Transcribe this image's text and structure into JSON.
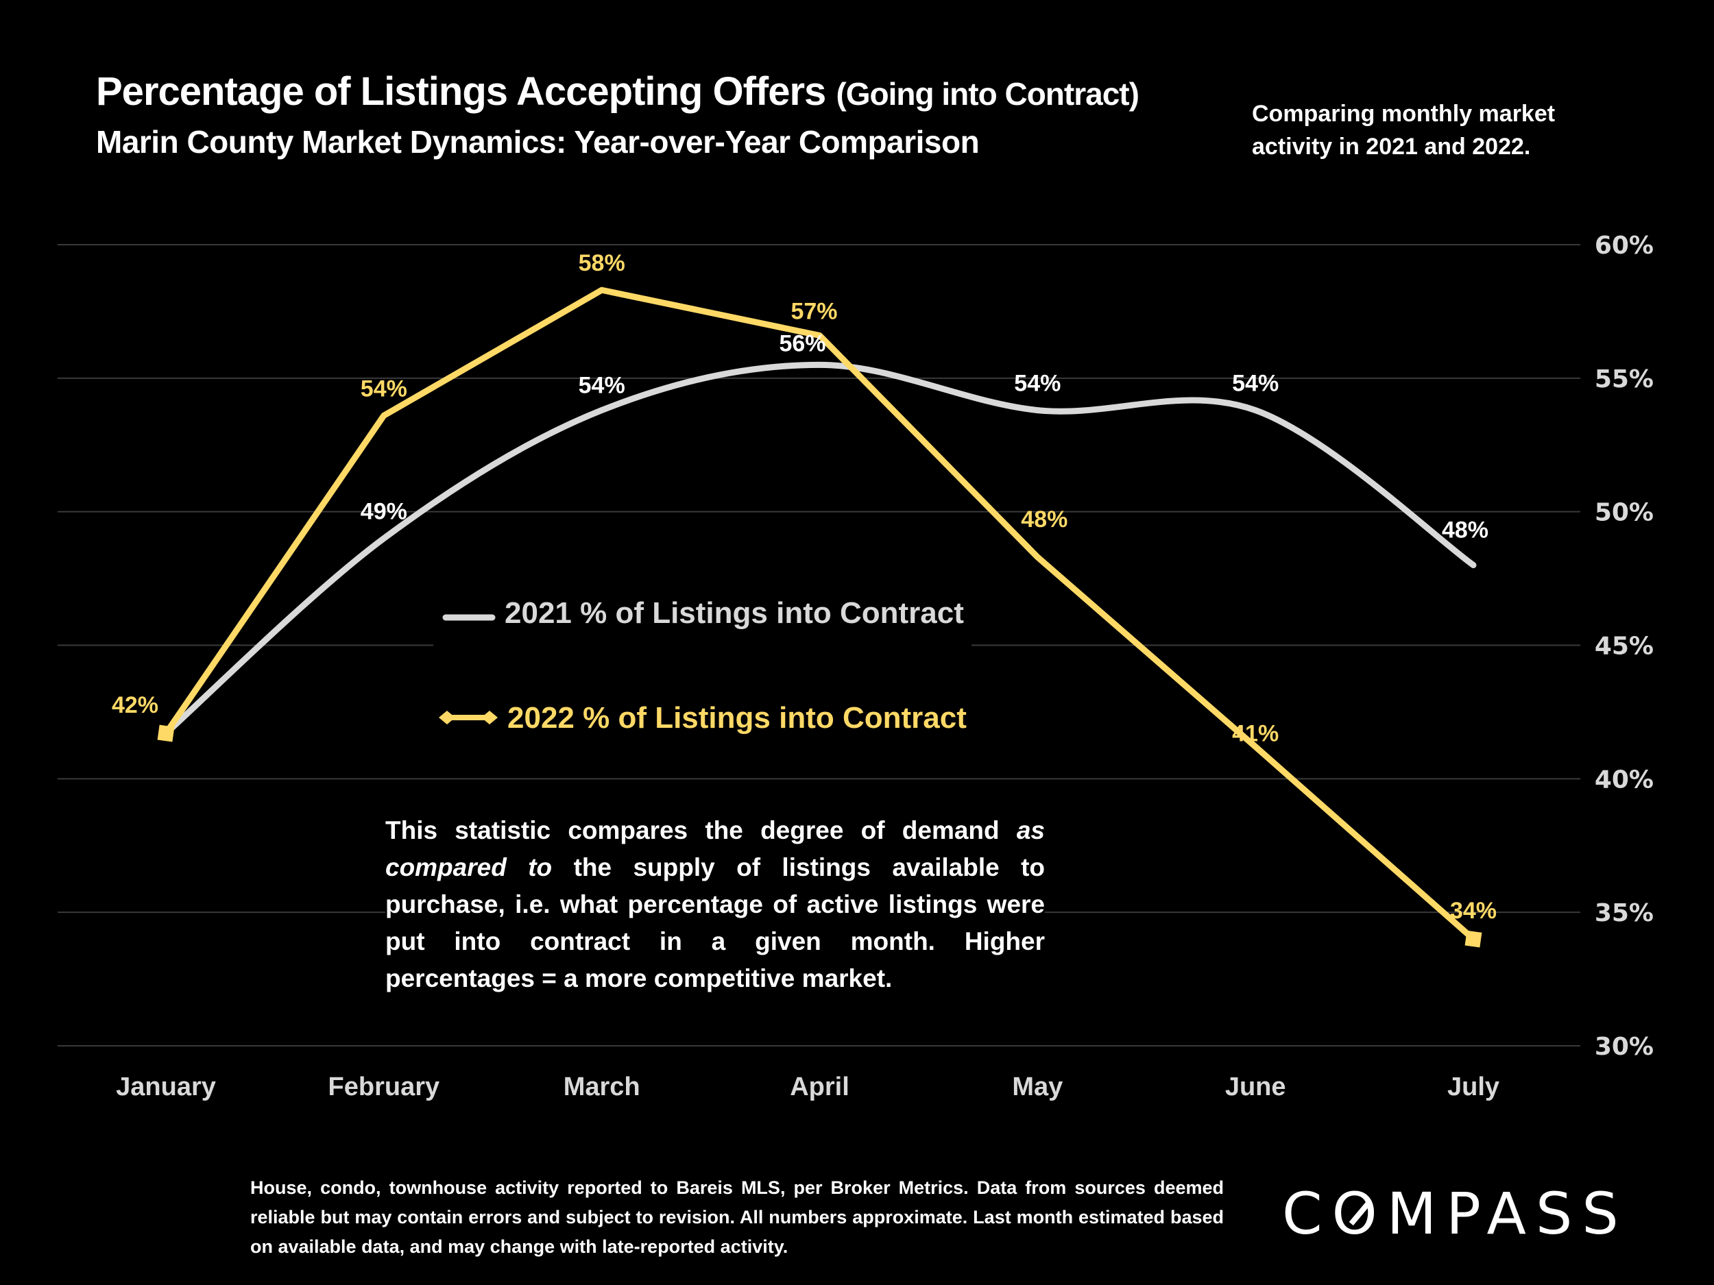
{
  "header": {
    "title_main": "Percentage of Listings Accepting Offers",
    "title_paren": "(Going into Contract)",
    "subtitle": "Marin County Market Dynamics: Year-over-Year Comparison",
    "side_note": "Comparing monthly market activity in 2021 and 2022."
  },
  "annotation": {
    "part1": "This statistic compares the degree of demand ",
    "italic": "as compared to",
    "part2": " the supply of listings available to purchase, i.e. what percentage of active listings were put into contract in a given month. Higher percentages = a more competitive market."
  },
  "footer": {
    "disclaimer": "House, condo, townhouse activity reported to Bareis MLS, per Broker Metrics. Data from sources deemed reliable but may contain errors and subject to revision. All numbers approximate. Last month estimated based on available data, and may change with late-reported activity.",
    "logo": "COMPASS"
  },
  "colors": {
    "background": "#000000",
    "series_2021": "#D9D9D9",
    "series_2022": "#FFD966",
    "gridline": "#3A3A3A",
    "axis_text": "#D9D9D9"
  },
  "chart_data": {
    "type": "line",
    "title": "Percentage of Listings Accepting Offers (Going into Contract)",
    "xlabel": "",
    "ylabel": "",
    "categories": [
      "January",
      "February",
      "March",
      "April",
      "May",
      "June",
      "July"
    ],
    "ylim": [
      30,
      60
    ],
    "yticks": [
      30,
      35,
      40,
      45,
      50,
      55,
      60
    ],
    "ytick_labels": [
      "30%",
      "35%",
      "40%",
      "45%",
      "50%",
      "55%",
      "60%"
    ],
    "y_axis_side": "right",
    "grid": true,
    "legend_placement": "center-left",
    "series": [
      {
        "name": "2021 % of Listings into Contract",
        "color": "#D9D9D9",
        "smooth": true,
        "marker": "none",
        "values": [
          41.7,
          49.0,
          53.8,
          55.5,
          53.8,
          53.8,
          48.0
        ],
        "labels": [
          null,
          "49%",
          "54%",
          "56%",
          "54%",
          "54%",
          "48%"
        ]
      },
      {
        "name": "2022 % of Listings into Contract",
        "color": "#FFD966",
        "smooth": false,
        "marker": "diamond",
        "values": [
          41.7,
          53.6,
          58.3,
          56.6,
          48.3,
          41.2,
          34.0
        ],
        "labels": [
          "42%",
          "54%",
          "58%",
          "57%",
          "48%",
          "41%",
          "34%"
        ]
      }
    ]
  }
}
